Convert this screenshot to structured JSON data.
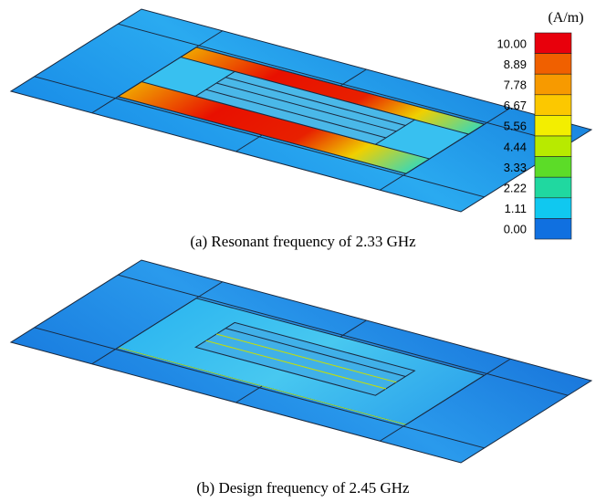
{
  "figures": [
    {
      "caption": "(a) Resonant frequency of 2.33 GHz"
    },
    {
      "caption": "(b) Design frequency of 2.45 GHz"
    }
  ],
  "colorbar": {
    "unit": "(A/m)",
    "labels": [
      "10.00",
      "8.89",
      "7.78",
      "6.67",
      "5.56",
      "4.44",
      "3.33",
      "2.22",
      "1.11",
      "0.00"
    ],
    "colors": [
      "#e8000c",
      "#f06000",
      "#f79a00",
      "#fcc800",
      "#f3ee00",
      "#b8ea00",
      "#5cdc28",
      "#20d8a0",
      "#10c8f0",
      "#1070e0"
    ]
  }
}
